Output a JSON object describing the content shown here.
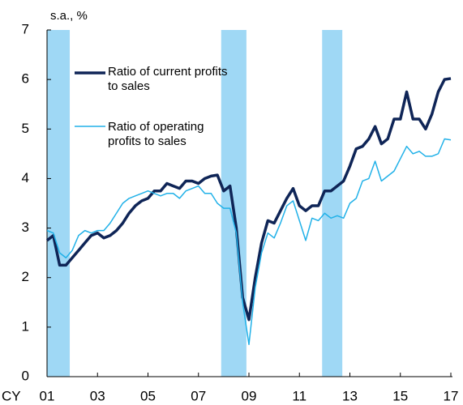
{
  "chart_data": {
    "type": "line",
    "y_label": "s.a., %",
    "x_label": "CY",
    "x": [
      2001,
      2001.25,
      2001.5,
      2001.75,
      2002,
      2002.25,
      2002.5,
      2002.75,
      2003,
      2003.25,
      2003.5,
      2003.75,
      2004,
      2004.25,
      2004.5,
      2004.75,
      2005,
      2005.25,
      2005.5,
      2005.75,
      2006,
      2006.25,
      2006.5,
      2006.75,
      2007,
      2007.25,
      2007.5,
      2007.75,
      2008,
      2008.25,
      2008.5,
      2008.75,
      2009,
      2009.25,
      2009.5,
      2009.75,
      2010,
      2010.25,
      2010.5,
      2010.75,
      2011,
      2011.25,
      2011.5,
      2011.75,
      2012,
      2012.25,
      2012.5,
      2012.75,
      2013,
      2013.25,
      2013.5,
      2013.75,
      2014,
      2014.25,
      2014.5,
      2014.75,
      2015,
      2015.25,
      2015.5,
      2015.75,
      2016,
      2016.25,
      2016.5,
      2016.75,
      2017
    ],
    "series": [
      {
        "name": "Ratio of current profits to sales",
        "color": "#0f2557",
        "width": 3.5,
        "values": [
          2.75,
          2.85,
          2.25,
          2.25,
          2.4,
          2.55,
          2.7,
          2.85,
          2.9,
          2.8,
          2.85,
          2.95,
          3.1,
          3.3,
          3.45,
          3.55,
          3.6,
          3.75,
          3.75,
          3.9,
          3.85,
          3.8,
          3.95,
          3.95,
          3.9,
          4.0,
          4.05,
          4.07,
          3.75,
          3.85,
          3.0,
          1.6,
          1.15,
          2.0,
          2.7,
          3.15,
          3.1,
          3.35,
          3.6,
          3.8,
          3.45,
          3.35,
          3.45,
          3.45,
          3.75,
          3.75,
          3.85,
          3.95,
          4.25,
          4.6,
          4.65,
          4.8,
          5.05,
          4.7,
          4.8,
          5.2,
          5.2,
          5.75,
          5.2,
          5.2,
          5.0,
          5.3,
          5.75,
          6.0,
          6.02
        ]
      },
      {
        "name": "Ratio of operating profits to sales",
        "color": "#21b1e8",
        "width": 1.5,
        "values": [
          2.95,
          2.9,
          2.5,
          2.4,
          2.55,
          2.85,
          2.95,
          2.9,
          2.95,
          2.95,
          3.1,
          3.3,
          3.5,
          3.6,
          3.65,
          3.7,
          3.75,
          3.7,
          3.65,
          3.7,
          3.7,
          3.6,
          3.75,
          3.8,
          3.85,
          3.7,
          3.7,
          3.5,
          3.4,
          3.4,
          2.9,
          1.5,
          0.65,
          1.8,
          2.5,
          2.9,
          2.8,
          3.1,
          3.45,
          3.55,
          3.15,
          2.75,
          3.2,
          3.15,
          3.3,
          3.2,
          3.25,
          3.2,
          3.5,
          3.6,
          3.95,
          4.0,
          4.35,
          3.95,
          4.05,
          4.15,
          4.4,
          4.65,
          4.5,
          4.55,
          4.45,
          4.45,
          4.5,
          4.8,
          4.78
        ]
      }
    ],
    "shaded_periods": [
      [
        2001.0,
        2001.9
      ],
      [
        2007.9,
        2008.9
      ],
      [
        2011.9,
        2012.7
      ]
    ],
    "shade_color": "#9fd8f5",
    "xlim": [
      2001,
      2017
    ],
    "xticks": [
      {
        "value": 2001,
        "label": "01"
      },
      {
        "value": 2003,
        "label": "03"
      },
      {
        "value": 2005,
        "label": "05"
      },
      {
        "value": 2007,
        "label": "07"
      },
      {
        "value": 2009,
        "label": "09"
      },
      {
        "value": 2011,
        "label": "11"
      },
      {
        "value": 2013,
        "label": "13"
      },
      {
        "value": 2015,
        "label": "15"
      },
      {
        "value": 2017,
        "label": "17"
      }
    ],
    "ylim": [
      0,
      7
    ],
    "yticks": [
      0,
      1,
      2,
      3,
      4,
      5,
      6,
      7
    ],
    "legend": "upper left",
    "grid": false
  }
}
